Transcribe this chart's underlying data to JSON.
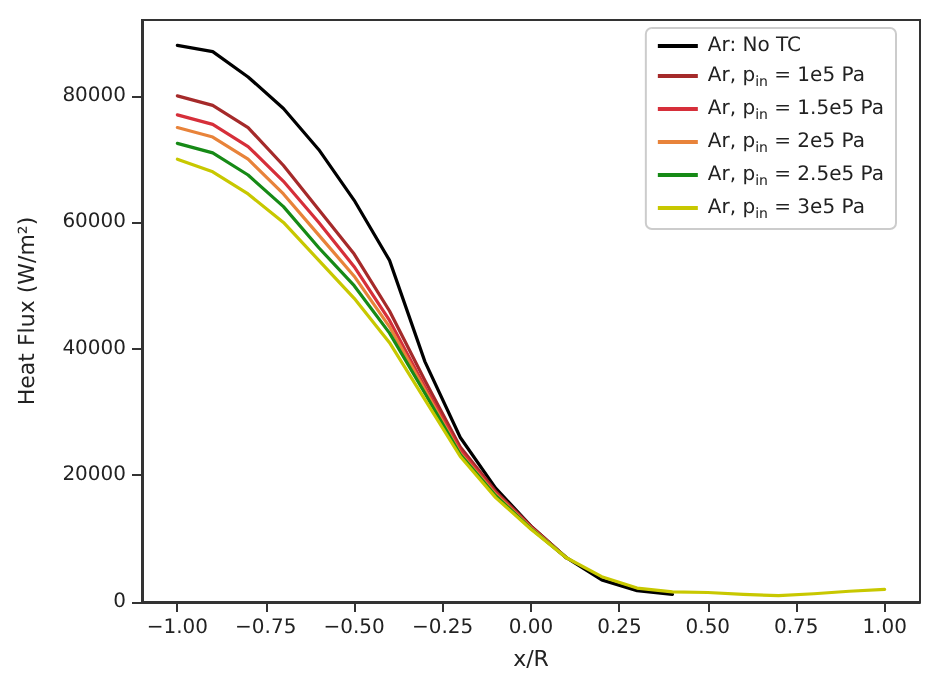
{
  "chart_data": {
    "type": "line",
    "xlabel": "x/R",
    "ylabel": "Heat Flux (W/m²)",
    "x": [
      -1,
      -0.9,
      -0.8,
      -0.7,
      -0.6,
      -0.5,
      -0.4,
      -0.3,
      -0.2,
      -0.1,
      0,
      0.1,
      0.2,
      0.3,
      0.4,
      0.5,
      0.6,
      0.7,
      0.8,
      0.9,
      1.0
    ],
    "series": [
      {
        "name": "Ar: No TC",
        "color": "#000000",
        "values": [
          88000,
          87000,
          83000,
          78000,
          71500,
          63500,
          54000,
          38000,
          26000,
          18000,
          12000,
          7000,
          3500,
          1800,
          1200,
          null,
          null,
          null,
          null,
          null,
          null
        ]
      },
      {
        "name": "Ar, p$_{in}$ = 1e5 Pa",
        "color": "#a52a2a",
        "values": [
          80000,
          78500,
          75000,
          69000,
          62000,
          55000,
          46000,
          35000,
          24500,
          17500,
          12000,
          7000,
          null,
          null,
          null,
          null,
          null,
          null,
          null,
          null,
          null
        ]
      },
      {
        "name": "Ar, p$_{in}$ = 1.5e5 Pa",
        "color": "#d62f3a",
        "values": [
          77000,
          75500,
          72000,
          66500,
          60000,
          53000,
          44500,
          34000,
          24000,
          17200,
          11800,
          7000,
          null,
          null,
          null,
          null,
          null,
          null,
          null,
          null,
          null
        ]
      },
      {
        "name": "Ar, p$_{in}$ = 2e5 Pa",
        "color": "#e8833a",
        "values": [
          75000,
          73500,
          70000,
          64500,
          58000,
          51500,
          43500,
          33500,
          23500,
          17000,
          11700,
          7000,
          null,
          null,
          null,
          null,
          null,
          null,
          null,
          null,
          null
        ]
      },
      {
        "name": "Ar, p$_{in}$ = 2.5e5 Pa",
        "color": "#168a16",
        "values": [
          72500,
          71000,
          67500,
          62500,
          56000,
          50000,
          42500,
          33000,
          23300,
          16800,
          11600,
          7000,
          null,
          null,
          null,
          null,
          null,
          null,
          null,
          null,
          null
        ]
      },
      {
        "name": "Ar, p$_{in}$ = 3e5 Pa",
        "color": "#c8c800",
        "values": [
          70000,
          68000,
          64500,
          60000,
          54000,
          48000,
          41000,
          32000,
          23000,
          16500,
          11500,
          7000,
          4000,
          2200,
          1600,
          1500,
          1200,
          1000,
          1300,
          1700,
          2000
        ]
      }
    ],
    "xlim": [
      -1.1,
      1.1
    ],
    "xticks": [
      {
        "value": -1,
        "label": "−1.00"
      },
      {
        "value": -0.75,
        "label": "−0.75"
      },
      {
        "value": -0.5,
        "label": "−0.50"
      },
      {
        "value": -0.25,
        "label": "−0.25"
      },
      {
        "value": 0,
        "label": "0.00"
      },
      {
        "value": 0.25,
        "label": "0.25"
      },
      {
        "value": 0.5,
        "label": "0.50"
      },
      {
        "value": 0.75,
        "label": "0.75"
      },
      {
        "value": 1,
        "label": "1.00"
      }
    ],
    "ylim": [
      0,
      92000
    ],
    "yticks": [
      0,
      20000,
      40000,
      60000,
      80000
    ],
    "grid": false,
    "legend": "top right",
    "marker": "none",
    "line_style": "solid"
  }
}
